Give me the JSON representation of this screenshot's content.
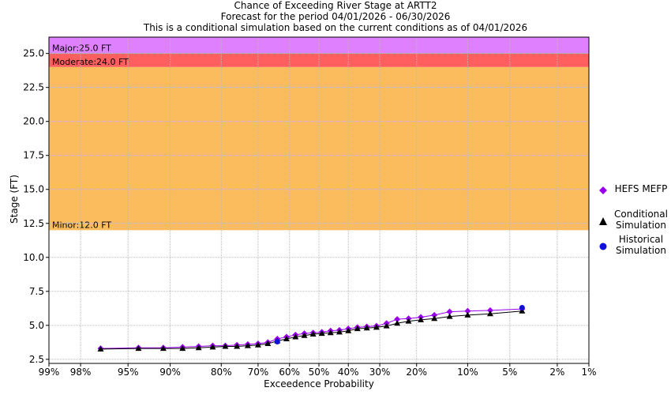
{
  "header": {
    "title_line1": "Chance of Exceeding River Stage at ARTT2",
    "title_line2": "Forecast for the period 04/01/2026 - 06/30/2026",
    "title_line3": "This is a conditional simulation based on the current conditions as of 04/01/2026"
  },
  "legend": {
    "hefs": "HEFS MEFP",
    "conditional": "Conditional Simulation",
    "historical": "Historical Simulation"
  },
  "colors": {
    "major": "#df80ff",
    "moderate": "#ff5f5f",
    "minor": "#fbbc5d",
    "hefs": "#9900ee",
    "conditional": "#000000",
    "historical": "#1010dd",
    "grid": "#bbbbbb"
  },
  "chart_data": {
    "type": "line",
    "title": "Chance of Exceeding River Stage at ARTT2",
    "xlabel": "Exceedence Probability",
    "ylabel": "Stage (FT)",
    "x_scale": "normal-probability",
    "x_ticks": [
      99,
      98,
      95,
      90,
      80,
      70,
      60,
      50,
      40,
      30,
      20,
      10,
      5,
      2,
      1
    ],
    "x_tick_labels": [
      "99%",
      "98%",
      "95%",
      "90%",
      "80%",
      "70%",
      "60%",
      "50%",
      "40%",
      "30%",
      "20%",
      "10%",
      "5%",
      "2%",
      "1%"
    ],
    "y_ticks": [
      2.5,
      5.0,
      7.5,
      10.0,
      12.5,
      15.0,
      17.5,
      20.0,
      22.5,
      25.0
    ],
    "y_tick_labels": [
      "2.5",
      "5.0",
      "7.5",
      "10.0",
      "12.5",
      "15.0",
      "17.5",
      "20.0",
      "22.5",
      "25.0"
    ],
    "ylim": [
      2.2,
      26.2
    ],
    "grid": true,
    "legend_position": "right",
    "flood_categories": [
      {
        "label": "Major:25.0 FT",
        "from": 25.0,
        "to": 26.2
      },
      {
        "label": "Moderate:24.0 FT",
        "from": 24.0,
        "to": 25.0
      },
      {
        "label": "Minor:12.0 FT",
        "from": 12.0,
        "to": 24.0
      }
    ],
    "series": [
      {
        "name": "HEFS MEFP",
        "marker": "diamond",
        "x": [
          97,
          94,
          91,
          88,
          85,
          82,
          79,
          76,
          73,
          70,
          67,
          64,
          61,
          58,
          55,
          52,
          49,
          46,
          43,
          40,
          37,
          34,
          31,
          28,
          25,
          22,
          19,
          16,
          13,
          10,
          7,
          4
        ],
        "y": [
          3.3,
          3.35,
          3.35,
          3.4,
          3.45,
          3.5,
          3.5,
          3.55,
          3.6,
          3.65,
          3.75,
          4.0,
          4.15,
          4.3,
          4.4,
          4.45,
          4.5,
          4.6,
          4.65,
          4.75,
          4.85,
          4.9,
          4.95,
          5.15,
          5.45,
          5.5,
          5.6,
          5.75,
          6.0,
          6.05,
          6.1,
          6.2
        ]
      },
      {
        "name": "Conditional Simulation",
        "marker": "triangle",
        "x": [
          97,
          94,
          91,
          88,
          85,
          82,
          79,
          76,
          73,
          70,
          67,
          64,
          61,
          58,
          55,
          52,
          49,
          46,
          43,
          40,
          37,
          34,
          31,
          28,
          25,
          22,
          19,
          16,
          13,
          10,
          7,
          4
        ],
        "y": [
          3.25,
          3.3,
          3.3,
          3.3,
          3.35,
          3.4,
          3.45,
          3.45,
          3.5,
          3.55,
          3.65,
          3.85,
          4.0,
          4.15,
          4.25,
          4.35,
          4.4,
          4.45,
          4.5,
          4.6,
          4.75,
          4.8,
          4.85,
          4.95,
          5.15,
          5.3,
          5.4,
          5.5,
          5.65,
          5.75,
          5.85,
          6.05
        ]
      },
      {
        "name": "Historical Simulation",
        "marker": "circle",
        "x": [
          64,
          4
        ],
        "y": [
          3.8,
          6.3
        ]
      }
    ]
  }
}
